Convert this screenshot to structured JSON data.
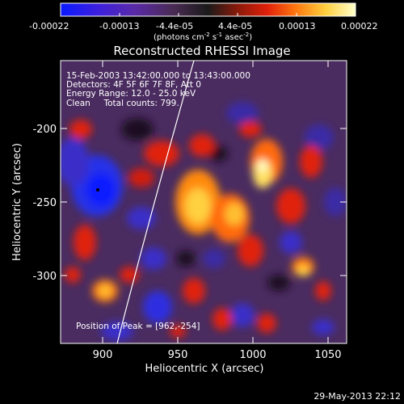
{
  "colorbar": {
    "ticks": [
      "-0.00022",
      "-0.00013",
      "-4.4e-05",
      "4.4e-05",
      "0.00013",
      "0.00022"
    ],
    "units_main": "(photons cm",
    "units_sup1": "-2",
    "units_mid": " s",
    "units_sup2": "-1",
    "units_end": " asec",
    "units_sup3": "-2",
    "units_close": ")",
    "stops": [
      "#0a1aff",
      "#3a1fe0",
      "#5a2aa8",
      "#4a2b55",
      "#1a1a1a",
      "#8a1a0a",
      "#e0200a",
      "#ff7a10",
      "#ffd040",
      "#ffffcc"
    ]
  },
  "title": "Reconstructed RHESSI Image",
  "info": {
    "line1": "15-Feb-2003 13:42:00.000 to 13:43:00.000",
    "line2": "Detectors: 4F 5F 6F 7F 8F, Att 0",
    "line3": "Energy Range: 12.0 - 25.0 keV",
    "line4": "Clean     Total counts: 799."
  },
  "peak_text": "Position of Peak = [962,-254]",
  "x_axis": {
    "label": "Heliocentric X (arcsec)",
    "ticks": [
      "900",
      "950",
      "1000",
      "1050"
    ],
    "range": [
      870,
      1062
    ]
  },
  "y_axis": {
    "label": "Heliocentric Y (arcsec)",
    "ticks": [
      "-200",
      "-250",
      "-300"
    ],
    "range": [
      -347,
      -155
    ]
  },
  "timestamp": "29-May-2013 22:12",
  "colors": {
    "background": "#000000",
    "text": "#ffffff",
    "limb": "#ffffff"
  }
}
